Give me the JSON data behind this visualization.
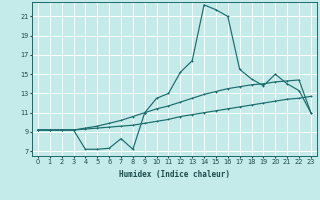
{
  "xlabel": "Humidex (Indice chaleur)",
  "bg_color": "#c5eaea",
  "grid_color": "#ffffff",
  "line_color": "#1a6b6b",
  "xlim": [
    -0.5,
    23.5
  ],
  "ylim": [
    6.5,
    22.5
  ],
  "xticks": [
    0,
    1,
    2,
    3,
    4,
    5,
    6,
    7,
    8,
    9,
    10,
    11,
    12,
    13,
    14,
    15,
    16,
    17,
    18,
    19,
    20,
    21,
    22,
    23
  ],
  "yticks": [
    7,
    9,
    11,
    13,
    15,
    17,
    19,
    21
  ],
  "curve1_x": [
    0,
    1,
    2,
    3,
    4,
    5,
    6,
    7,
    8,
    9,
    10,
    11,
    12,
    13,
    14,
    15,
    16,
    17,
    18,
    19,
    20,
    21,
    22,
    23
  ],
  "curve1_y": [
    9.2,
    9.2,
    9.2,
    9.2,
    9.3,
    9.4,
    9.5,
    9.6,
    9.7,
    9.9,
    10.1,
    10.3,
    10.6,
    10.8,
    11.0,
    11.2,
    11.4,
    11.6,
    11.8,
    12.0,
    12.2,
    12.4,
    12.5,
    12.7
  ],
  "curve2_x": [
    0,
    1,
    2,
    3,
    4,
    5,
    6,
    7,
    8,
    9,
    10,
    11,
    12,
    13,
    14,
    15,
    16,
    17,
    18,
    19,
    20,
    21,
    22,
    23
  ],
  "curve2_y": [
    9.2,
    9.2,
    9.2,
    9.2,
    9.4,
    9.6,
    9.9,
    10.2,
    10.6,
    11.0,
    11.4,
    11.7,
    12.1,
    12.5,
    12.9,
    13.2,
    13.5,
    13.7,
    13.9,
    14.0,
    14.2,
    14.3,
    14.4,
    11.0
  ],
  "curve3_x": [
    0,
    1,
    2,
    3,
    4,
    5,
    6,
    7,
    8,
    9,
    10,
    11,
    12,
    13,
    14,
    15,
    16,
    17,
    18,
    19,
    20,
    21,
    22,
    23
  ],
  "curve3_y": [
    9.2,
    9.2,
    9.2,
    9.2,
    7.2,
    7.2,
    7.3,
    8.3,
    7.2,
    11.0,
    12.5,
    13.0,
    15.2,
    16.4,
    22.2,
    21.7,
    21.0,
    15.5,
    14.5,
    13.8,
    15.0,
    14.0,
    13.3,
    11.0
  ]
}
